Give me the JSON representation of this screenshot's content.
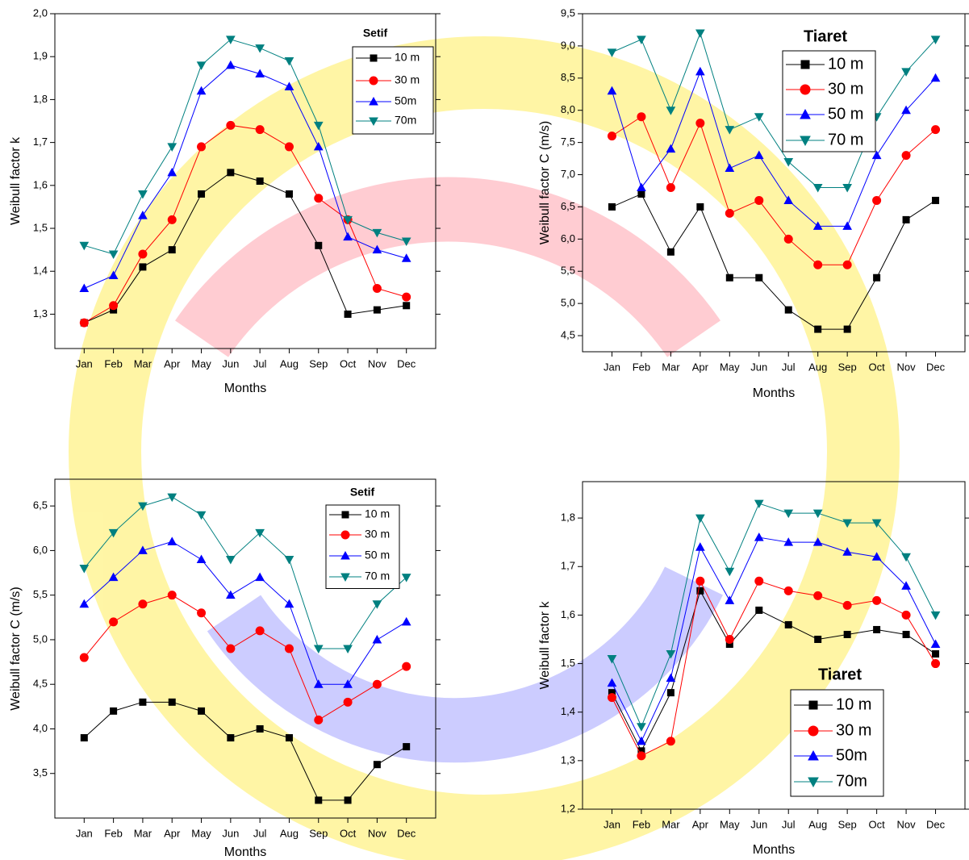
{
  "chart_data": [
    {
      "type": "line",
      "title": "Setif",
      "ylabel": "Weibull factor  k",
      "xlabel": "Months",
      "legend": "upper right",
      "categories": [
        "Jan",
        "Feb",
        "Mar",
        "Apr",
        "May",
        "Jun",
        "Jul",
        "Aug",
        "Sep",
        "Oct",
        "Nov",
        "Dec"
      ],
      "ylim": [
        1.22,
        2.0
      ],
      "yticks": [
        {
          "value": 1.3,
          "label": "1,3"
        },
        {
          "value": 1.4,
          "label": "1,4"
        },
        {
          "value": 1.5,
          "label": "1,5"
        },
        {
          "value": 1.6,
          "label": "1,6"
        },
        {
          "value": 1.7,
          "label": "1,7"
        },
        {
          "value": 1.8,
          "label": "1,8"
        },
        {
          "value": 1.9,
          "label": "1,9"
        },
        {
          "value": 2.0,
          "label": "2,0"
        }
      ],
      "series": [
        {
          "name": "10 m",
          "color": "#000000",
          "marker": "square",
          "values": [
            1.28,
            1.31,
            1.41,
            1.45,
            1.58,
            1.63,
            1.61,
            1.58,
            1.46,
            1.3,
            1.31,
            1.32
          ]
        },
        {
          "name": "30 m",
          "color": "#ff0000",
          "marker": "circle",
          "values": [
            1.28,
            1.32,
            1.44,
            1.52,
            1.69,
            1.74,
            1.73,
            1.69,
            1.57,
            1.52,
            1.36,
            1.34
          ]
        },
        {
          "name": "50m",
          "color": "#0000ff",
          "marker": "triangle-up",
          "values": [
            1.36,
            1.39,
            1.53,
            1.63,
            1.82,
            1.88,
            1.86,
            1.83,
            1.69,
            1.48,
            1.45,
            1.43
          ]
        },
        {
          "name": "70m",
          "color": "#008080",
          "marker": "triangle-down",
          "values": [
            1.46,
            1.44,
            1.58,
            1.69,
            1.88,
            1.94,
            1.92,
            1.89,
            1.74,
            1.52,
            1.49,
            1.47
          ]
        }
      ]
    },
    {
      "type": "line",
      "title": "Tiaret",
      "ylabel": "Weibull factor  C (m/s)",
      "xlabel": "Months",
      "legend": "upper right",
      "categories": [
        "Jan",
        "Feb",
        "Mar",
        "Apr",
        "May",
        "Jun",
        "Jul",
        "Aug",
        "Sep",
        "Oct",
        "Nov",
        "Dec"
      ],
      "ylim": [
        4.25,
        9.5
      ],
      "yticks": [
        {
          "value": 4.5,
          "label": "4,5"
        },
        {
          "value": 5.0,
          "label": "5,0"
        },
        {
          "value": 5.5,
          "label": "5,5"
        },
        {
          "value": 6.0,
          "label": "6,0"
        },
        {
          "value": 6.5,
          "label": "6,5"
        },
        {
          "value": 7.0,
          "label": "7,0"
        },
        {
          "value": 7.5,
          "label": "7,5"
        },
        {
          "value": 8.0,
          "label": "8,0"
        },
        {
          "value": 8.5,
          "label": "8,5"
        },
        {
          "value": 9.0,
          "label": "9,0"
        },
        {
          "value": 9.5,
          "label": "9,5"
        }
      ],
      "series": [
        {
          "name": "10 m",
          "color": "#000000",
          "marker": "square",
          "values": [
            6.5,
            6.7,
            5.8,
            6.5,
            5.4,
            5.4,
            4.9,
            4.6,
            4.6,
            5.4,
            6.3,
            6.6
          ]
        },
        {
          "name": "30 m",
          "color": "#ff0000",
          "marker": "circle",
          "values": [
            7.6,
            7.9,
            6.8,
            7.8,
            6.4,
            6.6,
            6.0,
            5.6,
            5.6,
            6.6,
            7.3,
            7.7
          ]
        },
        {
          "name": "50 m",
          "color": "#0000ff",
          "marker": "triangle-up",
          "values": [
            8.3,
            6.8,
            7.4,
            8.6,
            7.1,
            7.3,
            6.6,
            6.2,
            6.2,
            7.3,
            8.0,
            8.5
          ]
        },
        {
          "name": "70 m",
          "color": "#008080",
          "marker": "triangle-down",
          "values": [
            8.9,
            9.1,
            8.0,
            9.2,
            7.7,
            7.9,
            7.2,
            6.8,
            6.8,
            7.9,
            8.6,
            9.1
          ]
        }
      ]
    },
    {
      "type": "line",
      "title": "Setif",
      "ylabel": "Weibull factor  C (m/s)",
      "xlabel": "Months",
      "legend": "upper right",
      "categories": [
        "Jan",
        "Feb",
        "Mar",
        "Apr",
        "May",
        "Jun",
        "Jul",
        "Aug",
        "Sep",
        "Oct",
        "Nov",
        "Dec"
      ],
      "ylim": [
        3.0,
        6.8
      ],
      "yticks": [
        {
          "value": 3.5,
          "label": "3,5"
        },
        {
          "value": 4.0,
          "label": "4,0"
        },
        {
          "value": 4.5,
          "label": "4,5"
        },
        {
          "value": 5.0,
          "label": "5,0"
        },
        {
          "value": 5.5,
          "label": "5,5"
        },
        {
          "value": 6.0,
          "label": "6,0"
        },
        {
          "value": 6.5,
          "label": "6,5"
        }
      ],
      "series": [
        {
          "name": "10 m",
          "color": "#000000",
          "marker": "square",
          "values": [
            3.9,
            4.2,
            4.3,
            4.3,
            4.2,
            3.9,
            4.0,
            3.9,
            3.2,
            3.2,
            3.6,
            3.8
          ]
        },
        {
          "name": "30 m",
          "color": "#ff0000",
          "marker": "circle",
          "values": [
            4.8,
            5.2,
            5.4,
            5.5,
            5.3,
            4.9,
            5.1,
            4.9,
            4.1,
            4.3,
            4.5,
            4.7
          ]
        },
        {
          "name": "50 m",
          "color": "#0000ff",
          "marker": "triangle-up",
          "values": [
            5.4,
            5.7,
            6.0,
            6.1,
            5.9,
            5.5,
            5.7,
            5.4,
            4.5,
            4.5,
            5.0,
            5.2
          ]
        },
        {
          "name": "70 m",
          "color": "#008080",
          "marker": "triangle-down",
          "values": [
            5.8,
            6.2,
            6.5,
            6.6,
            6.4,
            5.9,
            6.2,
            5.9,
            4.9,
            4.9,
            5.4,
            5.7
          ]
        }
      ]
    },
    {
      "type": "line",
      "title": "Tiaret",
      "ylabel": "Weibull factor  k",
      "xlabel": "Months",
      "legend": "lower right",
      "categories": [
        "Jan",
        "Feb",
        "Mar",
        "Apr",
        "May",
        "Jun",
        "Jul",
        "Aug",
        "Sep",
        "Oct",
        "Nov",
        "Dec"
      ],
      "ylim": [
        1.2,
        1.875
      ],
      "yticks": [
        {
          "value": 1.2,
          "label": "1,2"
        },
        {
          "value": 1.3,
          "label": "1,3"
        },
        {
          "value": 1.4,
          "label": "1,4"
        },
        {
          "value": 1.5,
          "label": "1,5"
        },
        {
          "value": 1.6,
          "label": "1,6"
        },
        {
          "value": 1.7,
          "label": "1,7"
        },
        {
          "value": 1.8,
          "label": "1,8"
        }
      ],
      "series": [
        {
          "name": "10 m",
          "color": "#000000",
          "marker": "square",
          "values": [
            1.44,
            1.32,
            1.44,
            1.65,
            1.54,
            1.61,
            1.58,
            1.55,
            1.56,
            1.57,
            1.56,
            1.52
          ]
        },
        {
          "name": "30 m",
          "color": "#ff0000",
          "marker": "circle",
          "values": [
            1.43,
            1.31,
            1.34,
            1.67,
            1.55,
            1.67,
            1.65,
            1.64,
            1.62,
            1.63,
            1.6,
            1.5
          ]
        },
        {
          "name": "50m",
          "color": "#0000ff",
          "marker": "triangle-up",
          "values": [
            1.46,
            1.34,
            1.47,
            1.74,
            1.63,
            1.76,
            1.75,
            1.75,
            1.73,
            1.72,
            1.66,
            1.54
          ]
        },
        {
          "name": "70m",
          "color": "#008080",
          "marker": "triangle-down",
          "values": [
            1.51,
            1.37,
            1.52,
            1.8,
            1.69,
            1.83,
            1.81,
            1.81,
            1.79,
            1.79,
            1.72,
            1.6
          ]
        }
      ]
    }
  ]
}
